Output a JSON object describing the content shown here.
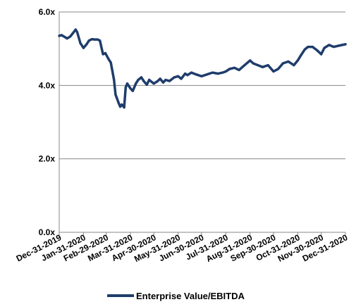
{
  "chart_data": {
    "type": "line",
    "title": "",
    "xlabel": "",
    "ylabel": "",
    "ylim": [
      0,
      6
    ],
    "y_ticks": [
      "0.0x",
      "2.0x",
      "4.0x",
      "6.0x"
    ],
    "y_tick_values": [
      0,
      2,
      4,
      6
    ],
    "x_ticks": [
      "Dec-31-2019",
      "Jan-31-2020",
      "Feb-29-2020",
      "Mar-31-2020",
      "Apr-30-2020",
      "May-31-2020",
      "Jun-30-2020",
      "Jul-31-2020",
      "Aug-31-2020",
      "Sep-30-2020",
      "Oct-31-2020",
      "Nov-30-2020",
      "Dec-31-2020"
    ],
    "x_tick_dates": [
      "2019-12-31",
      "2020-01-31",
      "2020-02-29",
      "2020-03-31",
      "2020-04-30",
      "2020-05-31",
      "2020-06-30",
      "2020-07-31",
      "2020-08-31",
      "2020-09-30",
      "2020-10-31",
      "2020-11-30",
      "2020-12-31"
    ],
    "grid": "horizontal",
    "legend_position": "bottom",
    "colors": {
      "series": "#1f3d6b",
      "grid": "#888888",
      "axis": "#888888"
    },
    "series": [
      {
        "name": "Enterprise Value/EBITDA",
        "x": [
          "2019-12-31",
          "2020-01-03",
          "2020-01-07",
          "2020-01-10",
          "2020-01-14",
          "2020-01-17",
          "2020-01-21",
          "2020-01-23",
          "2020-01-27",
          "2020-01-31",
          "2020-02-04",
          "2020-02-07",
          "2020-02-11",
          "2020-02-14",
          "2020-02-18",
          "2020-02-21",
          "2020-02-25",
          "2020-02-28",
          "2020-03-03",
          "2020-03-06",
          "2020-03-10",
          "2020-03-12",
          "2020-03-16",
          "2020-03-18",
          "2020-03-20",
          "2020-03-23",
          "2020-03-25",
          "2020-03-27",
          "2020-03-31",
          "2020-04-03",
          "2020-04-07",
          "2020-04-10",
          "2020-04-14",
          "2020-04-17",
          "2020-04-21",
          "2020-04-24",
          "2020-04-30",
          "2020-05-05",
          "2020-05-08",
          "2020-05-12",
          "2020-05-15",
          "2020-05-20",
          "2020-05-26",
          "2020-05-31",
          "2020-06-04",
          "2020-06-09",
          "2020-06-12",
          "2020-06-17",
          "2020-06-23",
          "2020-06-30",
          "2020-07-07",
          "2020-07-14",
          "2020-07-21",
          "2020-07-27",
          "2020-07-31",
          "2020-08-05",
          "2020-08-11",
          "2020-08-17",
          "2020-08-24",
          "2020-08-31",
          "2020-09-04",
          "2020-09-10",
          "2020-09-16",
          "2020-09-23",
          "2020-09-30",
          "2020-10-06",
          "2020-10-12",
          "2020-10-19",
          "2020-10-26",
          "2020-10-31",
          "2020-11-04",
          "2020-11-09",
          "2020-11-13",
          "2020-11-19",
          "2020-11-25",
          "2020-11-30",
          "2020-12-04",
          "2020-12-10",
          "2020-12-16",
          "2020-12-22",
          "2020-12-31"
        ],
        "y": [
          5.35,
          5.37,
          5.32,
          5.28,
          5.33,
          5.41,
          5.52,
          5.45,
          5.15,
          5.02,
          5.12,
          5.22,
          5.26,
          5.25,
          5.25,
          5.22,
          4.85,
          4.88,
          4.72,
          4.62,
          4.15,
          3.75,
          3.52,
          3.42,
          3.48,
          3.4,
          3.95,
          4.05,
          3.92,
          3.85,
          4.05,
          4.15,
          4.22,
          4.12,
          4.02,
          4.15,
          4.05,
          4.12,
          4.18,
          4.08,
          4.15,
          4.12,
          4.22,
          4.25,
          4.18,
          4.32,
          4.28,
          4.35,
          4.3,
          4.25,
          4.3,
          4.35,
          4.32,
          4.35,
          4.38,
          4.45,
          4.48,
          4.42,
          4.55,
          4.68,
          4.6,
          4.55,
          4.5,
          4.55,
          4.38,
          4.45,
          4.6,
          4.65,
          4.55,
          4.68,
          4.82,
          4.98,
          5.05,
          5.05,
          4.95,
          4.85,
          5.02,
          5.1,
          5.05,
          5.08,
          5.12
        ]
      }
    ]
  }
}
